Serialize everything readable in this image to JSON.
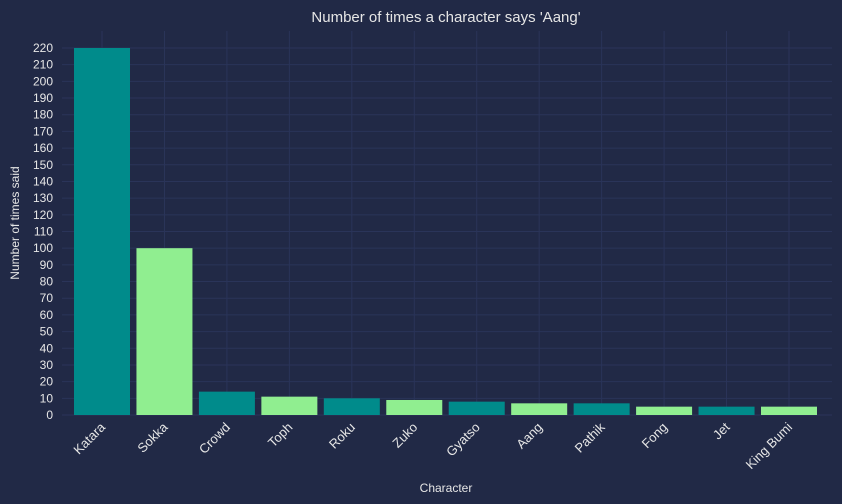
{
  "chart_data": {
    "type": "bar",
    "title": "Number of times a character says 'Aang'",
    "xlabel": "Character",
    "ylabel": "Number of times said",
    "categories": [
      "Katara",
      "Sokka",
      "Crowd",
      "Toph",
      "Roku",
      "Zuko",
      "Gyatso",
      "Aang",
      "Pathik",
      "Fong",
      "Jet",
      "King Bumi"
    ],
    "values": [
      220,
      100,
      14,
      11,
      10,
      9,
      8,
      7,
      7,
      5,
      5,
      5
    ],
    "bar_colors": [
      "#008b8b",
      "#90ee90"
    ],
    "ylim": [
      0,
      220
    ],
    "yticks": [
      0,
      10,
      20,
      30,
      40,
      50,
      60,
      70,
      80,
      90,
      100,
      110,
      120,
      130,
      140,
      150,
      160,
      170,
      180,
      190,
      200,
      210,
      220
    ],
    "grid": true,
    "background": "#212946",
    "grid_color": "#2a3459",
    "text_color": "#e6e6e6"
  }
}
